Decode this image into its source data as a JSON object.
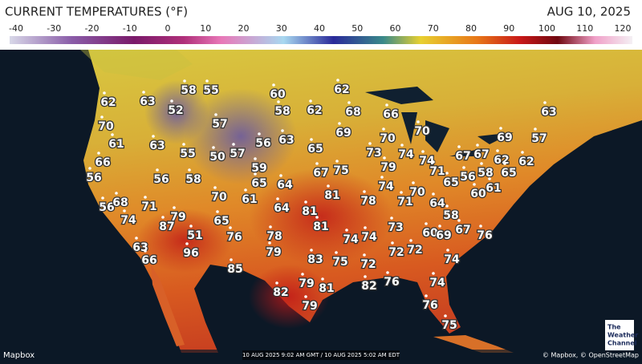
{
  "header": {
    "title": "CURRENT TEMPERATURES (°F)",
    "date": "AUG 10, 2025"
  },
  "legend": {
    "ticks": [
      -40,
      -30,
      -20,
      -10,
      0,
      10,
      20,
      30,
      40,
      50,
      60,
      70,
      80,
      90,
      100,
      110,
      120
    ]
  },
  "map": {
    "temperatures": [
      62,
      63,
      58,
      55,
      52,
      60,
      62,
      58,
      62,
      68,
      66,
      70,
      57,
      61,
      63,
      55,
      50,
      57,
      56,
      63,
      69,
      70,
      70,
      69,
      57,
      63,
      65,
      73,
      74,
      74,
      67,
      67,
      62,
      62,
      66,
      56,
      56,
      58,
      59,
      67,
      75,
      79,
      71,
      58,
      56,
      65,
      65,
      64,
      74,
      70,
      65,
      61,
      60,
      70,
      61,
      81,
      78,
      71,
      64,
      56,
      68,
      71,
      74,
      79,
      65,
      64,
      81,
      81,
      73,
      58,
      87,
      51,
      76,
      78,
      74,
      74,
      60,
      69,
      67,
      76,
      72,
      72,
      63,
      66,
      96,
      79,
      83,
      75,
      72,
      74,
      85,
      79,
      81,
      82,
      76,
      74,
      82,
      79,
      76,
      75
    ]
  },
  "footer": {
    "provider": "Mapbox",
    "timestamp": "10 AUG 2025 9:02 AM GMT / 10 AUG 2025 5:02 AM EDT",
    "attribution": "© Mapbox, © OpenStreetMap"
  },
  "logo": {
    "lines": [
      "The",
      "Weather",
      "Channel"
    ]
  }
}
